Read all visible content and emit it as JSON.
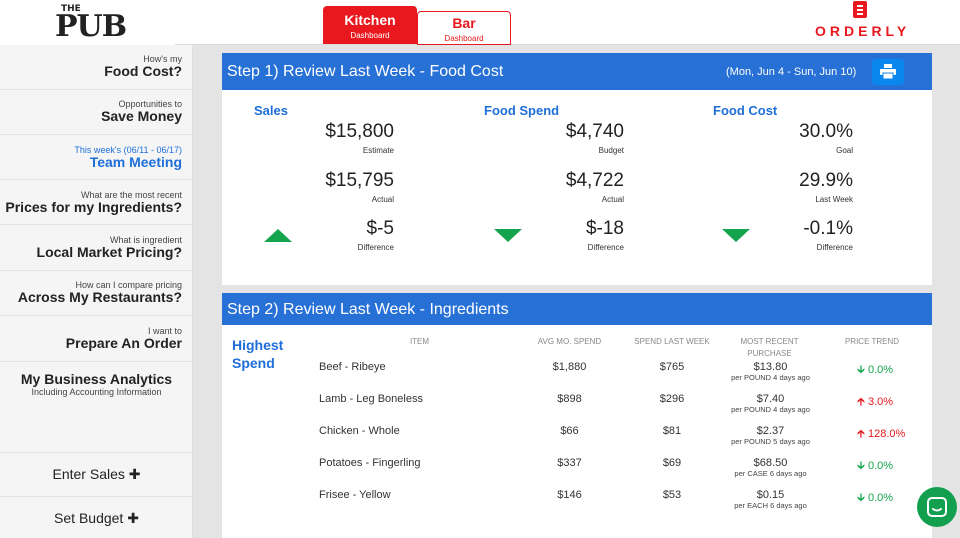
{
  "logo": {
    "the": "THE",
    "pub": "PUB"
  },
  "tabs": [
    {
      "label": "Kitchen",
      "sub": "Dashboard"
    },
    {
      "label": "Bar",
      "sub": "Dashboard"
    }
  ],
  "brand": "ORDERLY",
  "sidebar": [
    {
      "small": "How's my",
      "big": "Food Cost?"
    },
    {
      "small": "Opportunities to",
      "big": "Save Money"
    },
    {
      "small": "This week's (06/11 - 06/17)",
      "big": "Team Meeting"
    },
    {
      "small": "What are the most recent",
      "big": "Prices for my Ingredients?"
    },
    {
      "small": "What is ingredient",
      "big": "Local Market Pricing?"
    },
    {
      "small": "How can I compare pricing",
      "big": "Across My Restaurants?"
    },
    {
      "small": "I want to",
      "big": "Prepare An Order"
    },
    {
      "big": "My Business Analytics",
      "sub": "Including Accounting Information"
    },
    {
      "big": "Enter Sales ✚"
    },
    {
      "big": "Set Budget ✚"
    }
  ],
  "step1": {
    "title": "Step 1) Review Last Week - Food Cost",
    "range": "(Mon, Jun 4 - Sun, Jun 10)",
    "columns": [
      {
        "title": "Sales",
        "metrics": [
          {
            "val": "$15,800",
            "lab": "Estimate"
          },
          {
            "val": "$15,795",
            "lab": "Actual"
          },
          {
            "val": "$-5",
            "lab": "Difference"
          }
        ],
        "trend": "up"
      },
      {
        "title": "Food Spend",
        "metrics": [
          {
            "val": "$4,740",
            "lab": "Budget"
          },
          {
            "val": "$4,722",
            "lab": "Actual"
          },
          {
            "val": "$-18",
            "lab": "Difference"
          }
        ],
        "trend": "down"
      },
      {
        "title": "Food Cost",
        "metrics": [
          {
            "val": "30.0%",
            "lab": "Goal"
          },
          {
            "val": "29.9%",
            "lab": "Last Week"
          },
          {
            "val": "-0.1%",
            "lab": "Difference"
          }
        ],
        "trend": "down"
      }
    ]
  },
  "step2": {
    "title": "Step 2) Review Last Week - Ingredients",
    "section_label_1": "Highest",
    "section_label_2": "Spend",
    "headers": {
      "item": "ITEM",
      "avg": "AVG MO. SPEND",
      "last": "SPEND LAST WEEK",
      "recent": "MOST RECENT PURCHASE",
      "trend": "PRICE TREND"
    },
    "rows": [
      {
        "item": "Beef - Ribeye",
        "avg": "$1,880",
        "last": "$765",
        "price": "$13.80",
        "detail": "per POUND 4 days ago",
        "trend": "0.0%",
        "dir": "down"
      },
      {
        "item": "Lamb - Leg Boneless",
        "avg": "$898",
        "last": "$296",
        "price": "$7.40",
        "detail": "per POUND 4 days ago",
        "trend": "3.0%",
        "dir": "up"
      },
      {
        "item": "Chicken - Whole",
        "avg": "$66",
        "last": "$81",
        "price": "$2.37",
        "detail": "per POUND 5 days ago",
        "trend": "128.0%",
        "dir": "up"
      },
      {
        "item": "Potatoes - Fingerling",
        "avg": "$337",
        "last": "$69",
        "price": "$68.50",
        "detail": "per CASE 6 days ago",
        "trend": "0.0%",
        "dir": "down"
      },
      {
        "item": "Frisee - Yellow",
        "avg": "$146",
        "last": "$53",
        "price": "$0.15",
        "detail": "per EACH 6 days ago",
        "trend": "0.0%",
        "dir": "down"
      }
    ]
  },
  "colors": {
    "accent": "#e8181e",
    "header_blue": "#2770d6",
    "link_blue": "#1e6fd9",
    "green": "#14a44d"
  }
}
